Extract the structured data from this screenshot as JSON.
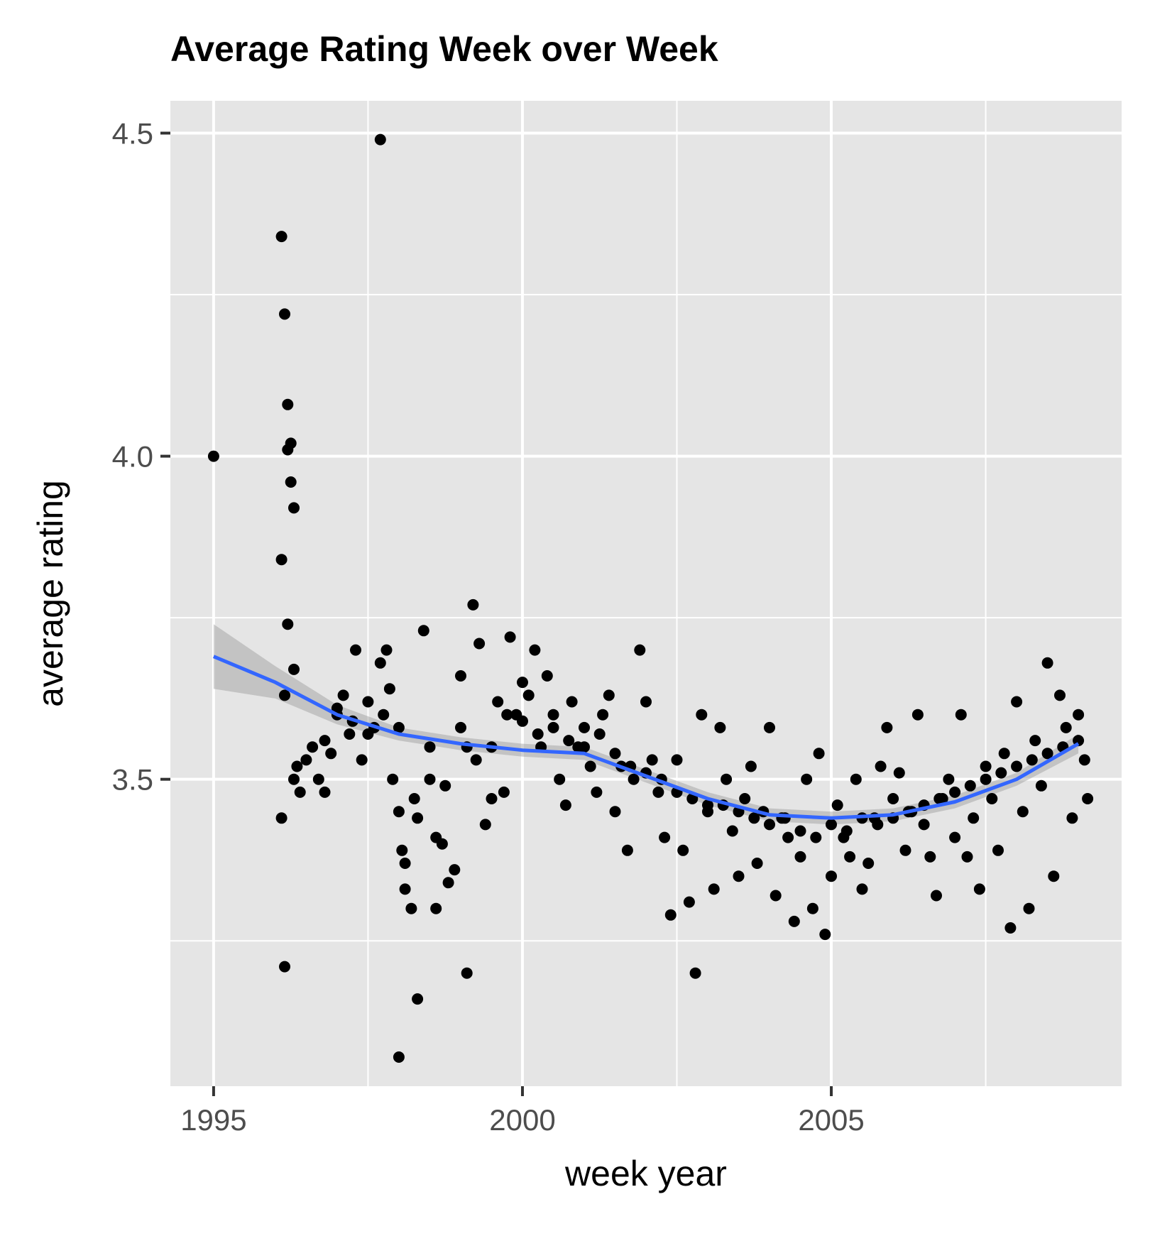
{
  "chart_data": {
    "type": "scatter",
    "title": "Average Rating Week over Week",
    "xlabel": "week year",
    "ylabel": "average rating",
    "xlim": [
      1994.3,
      2009.7
    ],
    "ylim": [
      3.025,
      4.55
    ],
    "x_ticks": [
      1995,
      2000,
      2005
    ],
    "x_tick_labels": [
      "1995",
      "2000",
      "2005"
    ],
    "x_minor_ticks": [
      1997.5,
      2002.5,
      2007.5
    ],
    "y_ticks": [
      3.5,
      4.0,
      4.5
    ],
    "y_tick_labels": [
      "3.5",
      "4.0",
      "4.5"
    ],
    "y_minor_ticks": [
      3.25,
      3.75,
      4.25
    ],
    "grid": true,
    "colors": {
      "panel_background": "#e5e5e5",
      "grid": "#ffffff",
      "points": "#000000",
      "smooth_line": "#3366ff",
      "confidence_band": "#999999"
    },
    "smooth": {
      "x": [
        1995.0,
        1996.0,
        1997.0,
        1998.0,
        1999.0,
        2000.0,
        2001.0,
        2002.0,
        2003.0,
        2004.0,
        2005.0,
        2006.0,
        2007.0,
        2008.0,
        2009.0
      ],
      "y": [
        3.69,
        3.65,
        3.6,
        3.57,
        3.555,
        3.545,
        3.54,
        3.505,
        3.47,
        3.445,
        3.44,
        3.445,
        3.465,
        3.5,
        3.555
      ],
      "lower": [
        3.64,
        3.625,
        3.585,
        3.56,
        3.545,
        3.535,
        3.53,
        3.495,
        3.46,
        3.435,
        3.43,
        3.435,
        3.455,
        3.49,
        3.54
      ],
      "upper": [
        3.74,
        3.675,
        3.615,
        3.58,
        3.565,
        3.555,
        3.55,
        3.515,
        3.48,
        3.455,
        3.45,
        3.455,
        3.475,
        3.51,
        3.57
      ]
    },
    "points": [
      [
        1995.0,
        4.0
      ],
      [
        1996.1,
        4.34
      ],
      [
        1996.15,
        4.22
      ],
      [
        1996.2,
        4.08
      ],
      [
        1996.25,
        4.02
      ],
      [
        1996.2,
        4.01
      ],
      [
        1996.25,
        3.96
      ],
      [
        1996.3,
        3.92
      ],
      [
        1996.1,
        3.84
      ],
      [
        1996.2,
        3.74
      ],
      [
        1996.3,
        3.67
      ],
      [
        1996.15,
        3.63
      ],
      [
        1996.1,
        3.44
      ],
      [
        1996.15,
        3.21
      ],
      [
        1997.7,
        4.49
      ],
      [
        1996.3,
        3.5
      ],
      [
        1996.35,
        3.52
      ],
      [
        1996.4,
        3.48
      ],
      [
        1996.5,
        3.53
      ],
      [
        1996.6,
        3.55
      ],
      [
        1996.7,
        3.5
      ],
      [
        1996.8,
        3.48
      ],
      [
        1996.9,
        3.54
      ],
      [
        1997.0,
        3.6
      ],
      [
        1997.1,
        3.63
      ],
      [
        1997.2,
        3.57
      ],
      [
        1997.3,
        3.7
      ],
      [
        1997.4,
        3.53
      ],
      [
        1997.5,
        3.62
      ],
      [
        1997.6,
        3.58
      ],
      [
        1997.7,
        3.68
      ],
      [
        1997.8,
        3.7
      ],
      [
        1997.85,
        3.64
      ],
      [
        1997.9,
        3.5
      ],
      [
        1998.0,
        3.45
      ],
      [
        1998.05,
        3.39
      ],
      [
        1998.1,
        3.33
      ],
      [
        1998.2,
        3.3
      ],
      [
        1998.3,
        3.44
      ],
      [
        1998.4,
        3.73
      ],
      [
        1998.5,
        3.5
      ],
      [
        1998.6,
        3.3
      ],
      [
        1998.7,
        3.4
      ],
      [
        1998.8,
        3.34
      ],
      [
        1998.9,
        3.36
      ],
      [
        1999.0,
        3.66
      ],
      [
        1999.1,
        3.55
      ],
      [
        1999.2,
        3.77
      ],
      [
        1999.3,
        3.71
      ],
      [
        1999.4,
        3.43
      ],
      [
        1999.5,
        3.47
      ],
      [
        1999.6,
        3.62
      ],
      [
        1999.7,
        3.48
      ],
      [
        1999.8,
        3.72
      ],
      [
        1999.9,
        3.6
      ],
      [
        2000.0,
        3.65
      ],
      [
        2000.1,
        3.63
      ],
      [
        2000.2,
        3.7
      ],
      [
        2000.3,
        3.55
      ],
      [
        2000.4,
        3.66
      ],
      [
        2000.5,
        3.58
      ],
      [
        2000.6,
        3.5
      ],
      [
        2000.7,
        3.46
      ],
      [
        2000.8,
        3.62
      ],
      [
        2000.9,
        3.55
      ],
      [
        2001.0,
        3.58
      ],
      [
        2001.1,
        3.52
      ],
      [
        2001.2,
        3.48
      ],
      [
        2001.3,
        3.6
      ],
      [
        2001.4,
        3.63
      ],
      [
        2001.5,
        3.45
      ],
      [
        2001.6,
        3.52
      ],
      [
        2001.7,
        3.39
      ],
      [
        2001.8,
        3.5
      ],
      [
        2001.9,
        3.7
      ],
      [
        2002.0,
        3.62
      ],
      [
        2002.1,
        3.53
      ],
      [
        2002.2,
        3.48
      ],
      [
        2002.3,
        3.41
      ],
      [
        2002.4,
        3.29
      ],
      [
        2002.5,
        3.53
      ],
      [
        2002.6,
        3.39
      ],
      [
        2002.7,
        3.31
      ],
      [
        2002.8,
        3.2
      ],
      [
        2002.9,
        3.6
      ],
      [
        2003.0,
        3.45
      ],
      [
        2003.1,
        3.33
      ],
      [
        2003.2,
        3.58
      ],
      [
        2003.3,
        3.5
      ],
      [
        2003.4,
        3.42
      ],
      [
        2003.5,
        3.35
      ],
      [
        2003.6,
        3.47
      ],
      [
        2003.7,
        3.52
      ],
      [
        2003.8,
        3.37
      ],
      [
        2003.9,
        3.45
      ],
      [
        2004.0,
        3.58
      ],
      [
        2004.1,
        3.32
      ],
      [
        2004.2,
        3.44
      ],
      [
        2004.3,
        3.41
      ],
      [
        2004.4,
        3.28
      ],
      [
        2004.5,
        3.38
      ],
      [
        2004.6,
        3.5
      ],
      [
        2004.7,
        3.3
      ],
      [
        2004.8,
        3.54
      ],
      [
        2004.9,
        3.26
      ],
      [
        2005.0,
        3.35
      ],
      [
        2005.1,
        3.46
      ],
      [
        2005.2,
        3.41
      ],
      [
        2005.3,
        3.38
      ],
      [
        2005.4,
        3.5
      ],
      [
        2005.5,
        3.33
      ],
      [
        2005.6,
        3.37
      ],
      [
        2005.7,
        3.44
      ],
      [
        2005.8,
        3.52
      ],
      [
        2005.9,
        3.58
      ],
      [
        2006.0,
        3.47
      ],
      [
        2006.1,
        3.51
      ],
      [
        2006.2,
        3.39
      ],
      [
        2006.3,
        3.45
      ],
      [
        2006.4,
        3.6
      ],
      [
        2006.5,
        3.43
      ],
      [
        2006.6,
        3.38
      ],
      [
        2006.7,
        3.32
      ],
      [
        2006.8,
        3.47
      ],
      [
        2006.9,
        3.5
      ],
      [
        2007.0,
        3.41
      ],
      [
        2007.1,
        3.6
      ],
      [
        2007.2,
        3.38
      ],
      [
        2007.3,
        3.44
      ],
      [
        2007.4,
        3.33
      ],
      [
        2007.5,
        3.52
      ],
      [
        2007.6,
        3.47
      ],
      [
        2007.7,
        3.39
      ],
      [
        2007.8,
        3.54
      ],
      [
        2007.9,
        3.27
      ],
      [
        2008.0,
        3.62
      ],
      [
        2008.1,
        3.45
      ],
      [
        2008.2,
        3.3
      ],
      [
        2008.3,
        3.56
      ],
      [
        2008.4,
        3.49
      ],
      [
        2008.5,
        3.68
      ],
      [
        2008.6,
        3.35
      ],
      [
        2008.7,
        3.63
      ],
      [
        2008.8,
        3.58
      ],
      [
        2008.9,
        3.44
      ],
      [
        2009.0,
        3.6
      ],
      [
        2009.1,
        3.53
      ],
      [
        2009.15,
        3.47
      ],
      [
        1996.8,
        3.56
      ],
      [
        1997.0,
        3.61
      ],
      [
        1997.25,
        3.59
      ],
      [
        1997.5,
        3.57
      ],
      [
        1997.75,
        3.6
      ],
      [
        1998.0,
        3.58
      ],
      [
        1998.25,
        3.47
      ],
      [
        1998.5,
        3.55
      ],
      [
        1998.75,
        3.49
      ],
      [
        1999.0,
        3.58
      ],
      [
        1999.25,
        3.53
      ],
      [
        1999.5,
        3.55
      ],
      [
        1999.75,
        3.6
      ],
      [
        2000.0,
        3.59
      ],
      [
        2000.25,
        3.57
      ],
      [
        2000.5,
        3.6
      ],
      [
        2000.75,
        3.56
      ],
      [
        2001.0,
        3.55
      ],
      [
        2001.25,
        3.57
      ],
      [
        2001.5,
        3.54
      ],
      [
        2001.75,
        3.52
      ],
      [
        2002.0,
        3.51
      ],
      [
        2002.25,
        3.5
      ],
      [
        2002.5,
        3.48
      ],
      [
        2002.75,
        3.47
      ],
      [
        2003.0,
        3.46
      ],
      [
        2003.25,
        3.46
      ],
      [
        2003.5,
        3.45
      ],
      [
        2003.75,
        3.44
      ],
      [
        2004.0,
        3.43
      ],
      [
        2004.25,
        3.44
      ],
      [
        2004.5,
        3.42
      ],
      [
        2004.75,
        3.41
      ],
      [
        2005.0,
        3.43
      ],
      [
        2005.25,
        3.42
      ],
      [
        2005.5,
        3.44
      ],
      [
        2005.75,
        3.43
      ],
      [
        2006.0,
        3.44
      ],
      [
        2006.25,
        3.45
      ],
      [
        2006.5,
        3.46
      ],
      [
        2006.75,
        3.47
      ],
      [
        2007.0,
        3.48
      ],
      [
        2007.25,
        3.49
      ],
      [
        2007.5,
        3.5
      ],
      [
        2007.75,
        3.51
      ],
      [
        2008.0,
        3.52
      ],
      [
        2008.25,
        3.53
      ],
      [
        2008.5,
        3.54
      ],
      [
        2008.75,
        3.55
      ],
      [
        2009.0,
        3.56
      ],
      [
        1998.3,
        3.16
      ],
      [
        1998.0,
        3.07
      ],
      [
        1999.1,
        3.2
      ],
      [
        1998.6,
        3.41
      ],
      [
        1998.1,
        3.37
      ]
    ]
  }
}
